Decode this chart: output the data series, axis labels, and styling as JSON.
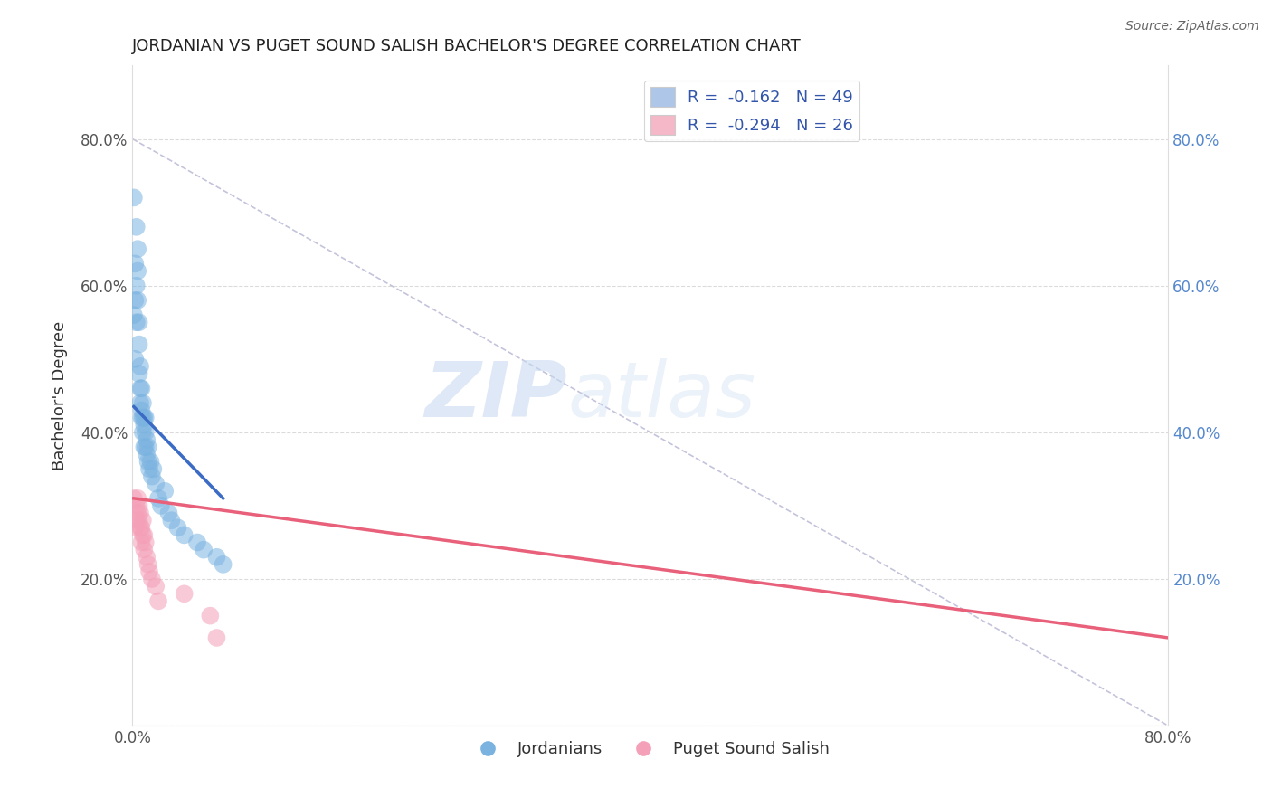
{
  "title": "JORDANIAN VS PUGET SOUND SALISH BACHELOR'S DEGREE CORRELATION CHART",
  "source": "Source: ZipAtlas.com",
  "ylabel": "Bachelor's Degree",
  "watermark_zip": "ZIP",
  "watermark_atlas": "atlas",
  "legend": [
    {
      "label": "R =  -0.162   N = 49",
      "color": "#aec6e8"
    },
    {
      "label": "R =  -0.294   N = 26",
      "color": "#f4b8c8"
    }
  ],
  "jordanians": {
    "color": "#7ab3e0",
    "line_color": "#3b6bc4",
    "x": [
      0.001,
      0.001,
      0.002,
      0.002,
      0.002,
      0.003,
      0.003,
      0.003,
      0.004,
      0.004,
      0.004,
      0.005,
      0.005,
      0.005,
      0.006,
      0.006,
      0.006,
      0.007,
      0.007,
      0.007,
      0.008,
      0.008,
      0.008,
      0.009,
      0.009,
      0.009,
      0.01,
      0.01,
      0.01,
      0.011,
      0.011,
      0.012,
      0.012,
      0.013,
      0.014,
      0.015,
      0.016,
      0.018,
      0.02,
      0.022,
      0.025,
      0.028,
      0.03,
      0.035,
      0.04,
      0.05,
      0.055,
      0.065,
      0.07
    ],
    "y": [
      0.72,
      0.56,
      0.63,
      0.58,
      0.5,
      0.68,
      0.6,
      0.55,
      0.62,
      0.65,
      0.58,
      0.52,
      0.48,
      0.55,
      0.46,
      0.49,
      0.44,
      0.43,
      0.46,
      0.42,
      0.42,
      0.44,
      0.4,
      0.42,
      0.38,
      0.41,
      0.4,
      0.42,
      0.38,
      0.39,
      0.37,
      0.36,
      0.38,
      0.35,
      0.36,
      0.34,
      0.35,
      0.33,
      0.31,
      0.3,
      0.32,
      0.29,
      0.28,
      0.27,
      0.26,
      0.25,
      0.24,
      0.23,
      0.22
    ],
    "trend_x": [
      0.001,
      0.07
    ],
    "trend_y": [
      0.435,
      0.31
    ]
  },
  "puget_sound_salish": {
    "color": "#f4a0b8",
    "line_color": "#e8607a",
    "x": [
      0.001,
      0.002,
      0.003,
      0.003,
      0.004,
      0.004,
      0.005,
      0.005,
      0.006,
      0.006,
      0.007,
      0.007,
      0.008,
      0.008,
      0.009,
      0.009,
      0.01,
      0.011,
      0.012,
      0.013,
      0.015,
      0.018,
      0.02,
      0.04,
      0.06,
      0.065
    ],
    "y": [
      0.31,
      0.27,
      0.3,
      0.28,
      0.29,
      0.31,
      0.28,
      0.3,
      0.27,
      0.29,
      0.25,
      0.27,
      0.26,
      0.28,
      0.24,
      0.26,
      0.25,
      0.23,
      0.22,
      0.21,
      0.2,
      0.19,
      0.17,
      0.18,
      0.15,
      0.12
    ],
    "trend_x": [
      0.001,
      0.8
    ],
    "trend_y": [
      0.31,
      0.12
    ]
  },
  "dashed_line_x": [
    0.0,
    0.8
  ],
  "dashed_line_y": [
    0.8,
    0.0
  ],
  "xlim": [
    0.0,
    0.8
  ],
  "ylim": [
    0.0,
    0.9
  ],
  "yticks": [
    0.0,
    0.2,
    0.4,
    0.6,
    0.8
  ],
  "ytick_labels_left": [
    "",
    "20.0%",
    "40.0%",
    "60.0%",
    "80.0%"
  ],
  "ytick_labels_right": [
    "",
    "20.0%",
    "40.0%",
    "60.0%",
    "80.0%"
  ],
  "xticks": [
    0.0,
    0.2,
    0.4,
    0.6,
    0.8
  ],
  "xtick_labels": [
    "0.0%",
    "",
    "",
    "",
    "80.0%"
  ],
  "background_color": "#ffffff",
  "grid_color": "#cccccc",
  "title_fontsize": 13,
  "tick_fontsize": 12
}
